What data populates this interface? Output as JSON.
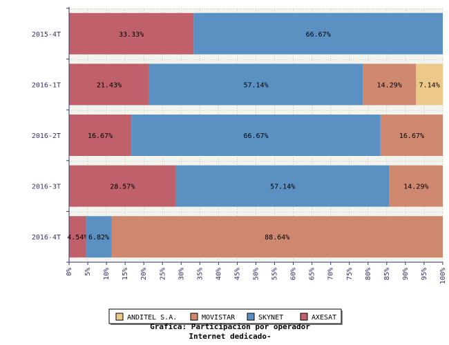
{
  "chart_data": {
    "type": "bar",
    "orientation": "horizontal",
    "stacked": true,
    "categories": [
      "2015-4T",
      "2016-1T",
      "2016-2T",
      "2016-3T",
      "2016-4T"
    ],
    "series": [
      {
        "name": "AXESAT",
        "color": "#c0606a",
        "values": [
          33.33,
          21.43,
          16.67,
          28.57,
          4.54
        ]
      },
      {
        "name": "SKYNET",
        "color": "#5b90c3",
        "values": [
          66.67,
          57.14,
          66.67,
          57.14,
          6.82
        ]
      },
      {
        "name": "MOVISTAR",
        "color": "#ce8870",
        "values": [
          0,
          14.29,
          16.67,
          14.29,
          88.64
        ]
      },
      {
        "name": "ANDITEL S.A.",
        "color": "#ecc98a",
        "values": [
          0,
          7.14,
          0,
          0,
          0
        ]
      }
    ],
    "data_labels": [
      [
        "33.33%",
        "66.67%",
        "",
        ""
      ],
      [
        "21.43%",
        "57.14%",
        "14.29%",
        "7.14%"
      ],
      [
        "16.67%",
        "66.67%",
        "16.67%",
        ""
      ],
      [
        "28.57%",
        "57.14%",
        "14.29%",
        ""
      ],
      [
        "4.54%",
        "6.82%",
        "88.64%",
        ""
      ]
    ],
    "x_ticks": [
      "0%",
      "5%",
      "10%",
      "15%",
      "20%",
      "25%",
      "30%",
      "35%",
      "40%",
      "45%",
      "50%",
      "55%",
      "60%",
      "65%",
      "70%",
      "75%",
      "80%",
      "85%",
      "90%",
      "95%",
      "100%"
    ],
    "xlim": [
      0,
      100
    ],
    "legend_order": [
      "ANDITEL S.A.",
      "MOVISTAR",
      "SKYNET",
      "AXESAT"
    ],
    "legend_position": "bottom",
    "grid": true
  },
  "caption": {
    "line1": "Grafica: Participacion por operador",
    "line2": "Internet dedicado-"
  }
}
